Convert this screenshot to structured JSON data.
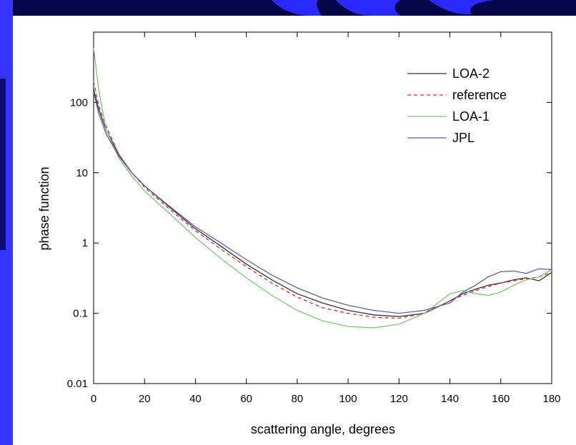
{
  "chart_data": {
    "type": "line",
    "x_label": "scattering angle, degrees",
    "y_label": "phase function",
    "x": [
      0,
      2,
      5,
      10,
      15,
      20,
      30,
      40,
      50,
      60,
      70,
      80,
      90,
      100,
      110,
      120,
      130,
      140,
      145,
      150,
      155,
      160,
      165,
      170,
      175,
      180
    ],
    "series": [
      {
        "name": "LOA-2",
        "color": "#333333",
        "dash": false,
        "values": [
          155,
          80,
          40,
          18,
          10,
          6.5,
          3.2,
          1.6,
          0.9,
          0.5,
          0.3,
          0.19,
          0.14,
          0.11,
          0.095,
          0.09,
          0.1,
          0.15,
          0.19,
          0.22,
          0.25,
          0.27,
          0.3,
          0.32,
          0.29,
          0.38
        ]
      },
      {
        "name": "reference",
        "color": "#e8262a",
        "dash": true,
        "values": [
          200,
          90,
          45,
          18,
          10,
          6.2,
          3,
          1.5,
          0.82,
          0.46,
          0.27,
          0.17,
          0.12,
          0.1,
          0.088,
          0.085,
          0.1,
          0.15,
          0.18,
          0.21,
          0.24,
          0.27,
          0.29,
          0.31,
          0.33,
          0.38
        ]
      },
      {
        "name": "LOA-1",
        "color": "#7cc576",
        "dash": false,
        "values": [
          600,
          150,
          40,
          16,
          9,
          5.5,
          2.6,
          1.2,
          0.6,
          0.32,
          0.18,
          0.11,
          0.078,
          0.065,
          0.062,
          0.07,
          0.1,
          0.19,
          0.21,
          0.19,
          0.18,
          0.2,
          0.25,
          0.3,
          0.33,
          0.42
        ]
      },
      {
        "name": "JPL",
        "color": "#5a5fb0",
        "dash": false,
        "values": [
          140,
          70,
          35,
          17,
          10,
          6.5,
          3.3,
          1.7,
          1.0,
          0.58,
          0.35,
          0.23,
          0.165,
          0.13,
          0.11,
          0.1,
          0.11,
          0.14,
          0.2,
          0.25,
          0.33,
          0.39,
          0.4,
          0.37,
          0.43,
          0.42
        ]
      }
    ],
    "xlim": [
      0,
      180
    ],
    "xticks": [
      0,
      20,
      40,
      60,
      80,
      100,
      120,
      140,
      160,
      180
    ],
    "ylim": [
      0.01,
      1000
    ],
    "yticks": [
      0.01,
      0.1,
      1,
      10,
      100
    ],
    "y_scale": "log",
    "legend_position": "upper right"
  }
}
